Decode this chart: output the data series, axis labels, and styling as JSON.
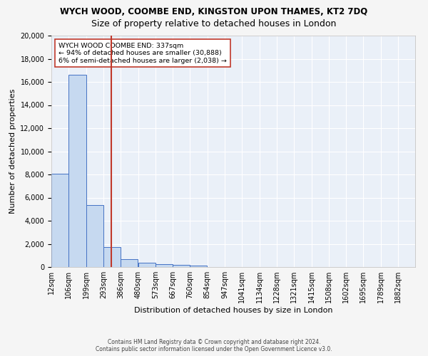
{
  "title1": "WYCH WOOD, COOMBE END, KINGSTON UPON THAMES, KT2 7DQ",
  "title2": "Size of property relative to detached houses in London",
  "xlabel": "Distribution of detached houses by size in London",
  "ylabel": "Number of detached properties",
  "footer1": "Contains HM Land Registry data © Crown copyright and database right 2024.",
  "footer2": "Contains public sector information licensed under the Open Government Licence v3.0.",
  "annotation_title": "WYCH WOOD COOMBE END: 337sqm",
  "annotation_line1": "← 94% of detached houses are smaller (30,888)",
  "annotation_line2": "6% of semi-detached houses are larger (2,038) →",
  "property_size": 337,
  "bar_labels": [
    "12sqm",
    "106sqm",
    "199sqm",
    "293sqm",
    "386sqm",
    "480sqm",
    "573sqm",
    "667sqm",
    "760sqm",
    "854sqm",
    "947sqm",
    "1041sqm",
    "1134sqm",
    "1228sqm",
    "1321sqm",
    "1415sqm",
    "1508sqm",
    "1602sqm",
    "1695sqm",
    "1789sqm",
    "1882sqm"
  ],
  "bar_values": [
    8050,
    16600,
    5350,
    1750,
    700,
    380,
    230,
    160,
    115,
    0,
    0,
    0,
    0,
    0,
    0,
    0,
    0,
    0,
    0,
    0,
    0
  ],
  "bin_starts": [
    12,
    106,
    199,
    293,
    386,
    480,
    573,
    667,
    760,
    854,
    947,
    1041,
    1134,
    1228,
    1321,
    1415,
    1508,
    1602,
    1695,
    1789,
    1882
  ],
  "bin_width": 93,
  "bar_color": "#c6d9f0",
  "bar_edge_color": "#4472c4",
  "vline_x": 337,
  "vline_color": "#c0392b",
  "ylim": [
    0,
    20000
  ],
  "yticks": [
    0,
    2000,
    4000,
    6000,
    8000,
    10000,
    12000,
    14000,
    16000,
    18000,
    20000
  ],
  "bg_color": "#eaf0f8",
  "grid_color": "#ffffff",
  "title1_fontsize": 8.5,
  "title2_fontsize": 9,
  "axis_label_fontsize": 8,
  "tick_fontsize": 7,
  "annotation_fontsize": 6.8,
  "footer_fontsize": 5.5
}
